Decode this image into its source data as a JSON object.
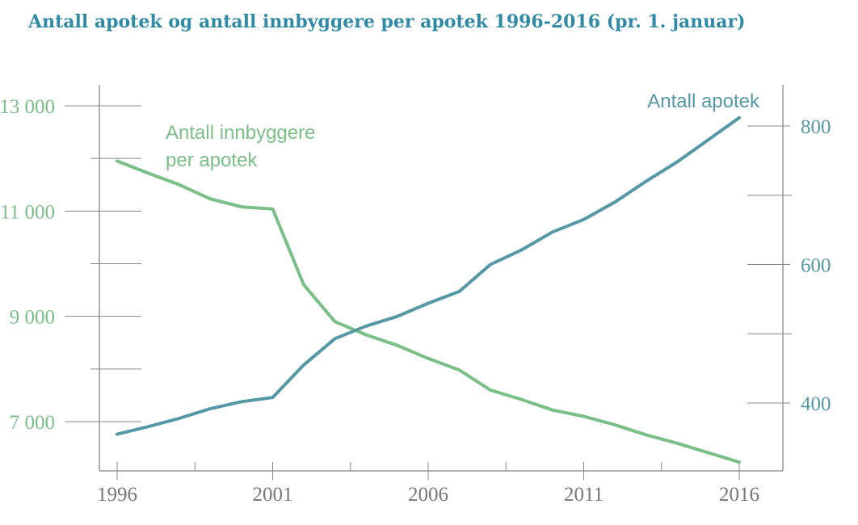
{
  "title": "Antall apotek og antall innbyggere per apotek 1996-2016 (pr. 1. januar)",
  "colors": {
    "green": "#79bf87",
    "blue": "#5598a6",
    "title": "#2f8aa6",
    "axis": "#666666",
    "grid": "#888888",
    "xtick": "#777777"
  },
  "chart_data": {
    "type": "line",
    "title": "Antall apotek og antall innbyggere per apotek 1996-2016 (pr. 1. januar)",
    "x": [
      1996,
      1997,
      1998,
      1999,
      2000,
      2001,
      2002,
      2003,
      2004,
      2005,
      2006,
      2007,
      2008,
      2009,
      2010,
      2011,
      2012,
      2013,
      2014,
      2015,
      2016
    ],
    "x_ticks": [
      "1996",
      "2001",
      "2006",
      "2011",
      "2016"
    ],
    "left_axis": {
      "ylim": [
        5800,
        13400
      ],
      "ticks": [
        "13 000",
        "11 000",
        "9 000",
        "7 000"
      ],
      "tick_values": [
        13000,
        11000,
        9000,
        7000
      ],
      "minor_ticks": [
        12000,
        10000,
        8000,
        6000
      ]
    },
    "right_axis": {
      "ylim": [
        300,
        860
      ],
      "ticks": [
        "800",
        "600",
        "400"
      ],
      "tick_values": [
        800,
        600,
        400
      ],
      "minor_ticks": [
        700,
        500
      ]
    },
    "series": [
      {
        "name": "Antall innbyggere per apotek",
        "label_lines": [
          "Antall innbyggere",
          "per apotek"
        ],
        "axis": "left",
        "color": "green",
        "values": [
          11950,
          11720,
          11500,
          11230,
          11080,
          11040,
          9600,
          8900,
          8650,
          8450,
          8200,
          7980,
          7600,
          7420,
          7220,
          7100,
          6940,
          6750,
          6590,
          6410,
          6230
        ]
      },
      {
        "name": "Antall apotek",
        "label_lines": [
          "Antall apotek"
        ],
        "axis": "right",
        "color": "blue",
        "values": [
          355,
          366,
          378,
          392,
          402,
          408,
          455,
          493,
          511,
          525,
          544,
          561,
          600,
          621,
          647,
          665,
          690,
          720,
          748,
          780,
          812
        ]
      }
    ]
  }
}
